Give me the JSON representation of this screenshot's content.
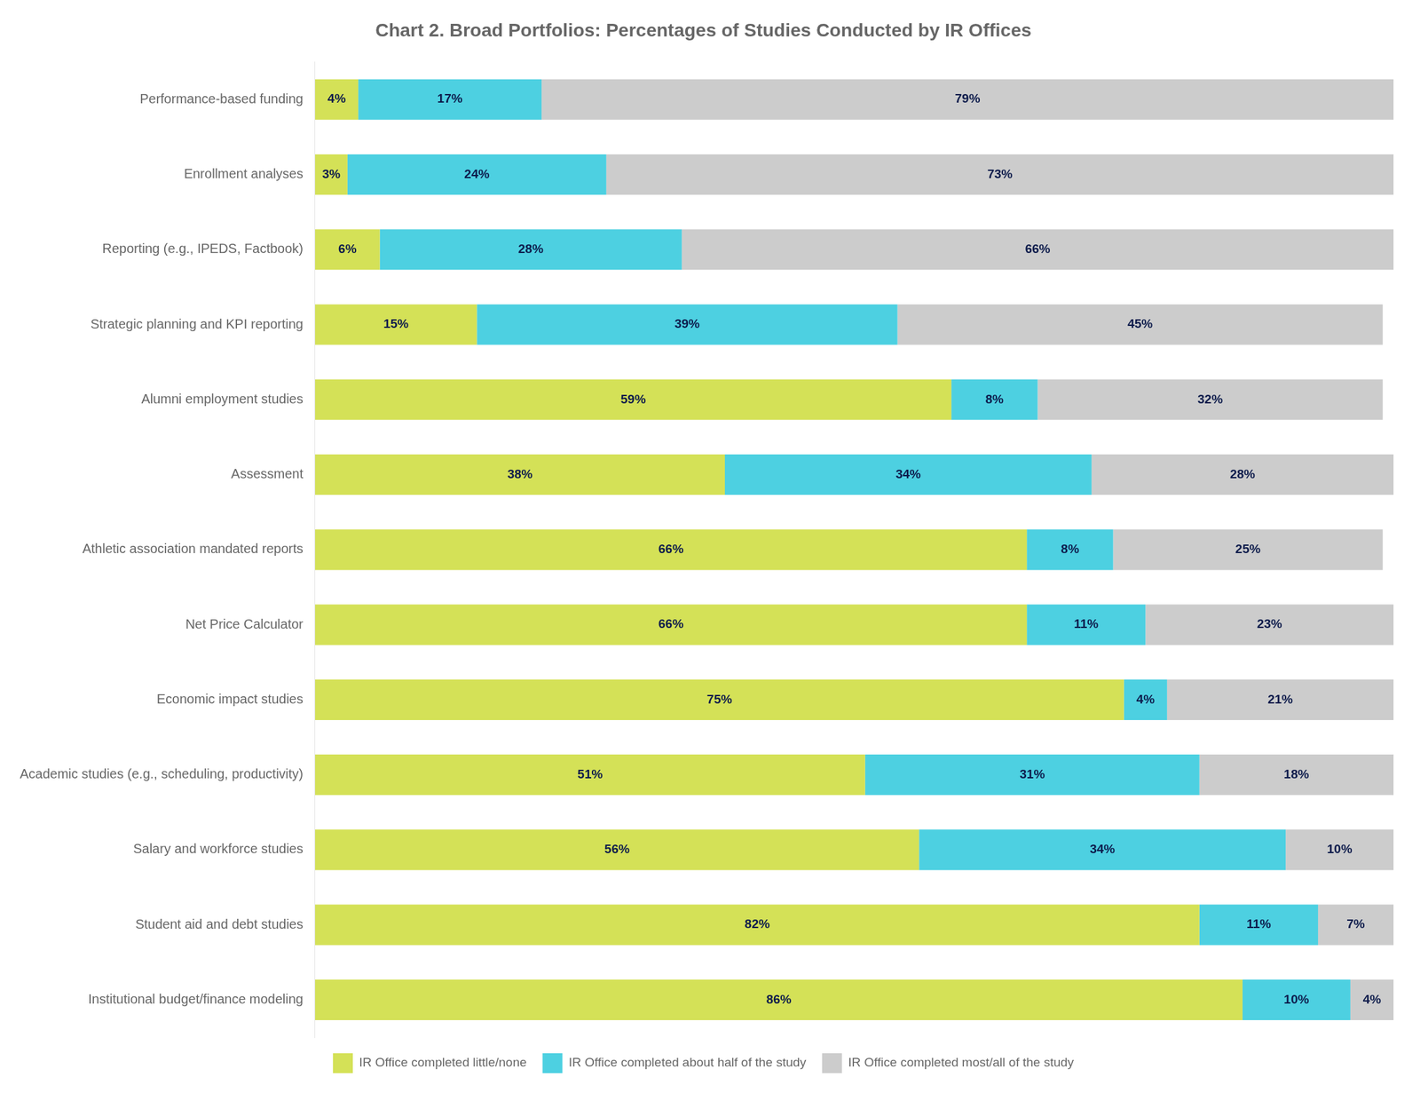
{
  "chart_data": {
    "type": "bar",
    "orientation": "horizontal",
    "stacked": true,
    "title": "Chart 2. Broad Portfolios: Percentages of Studies Conducted by IR Offices",
    "categories": [
      "Performance-based funding",
      "Enrollment analyses",
      "Reporting (e.g., IPEDS, Factbook)",
      "Strategic planning and KPI reporting",
      "Alumni employment studies",
      "Assessment",
      "Athletic association mandated reports",
      "Net Price Calculator",
      "Economic impact studies",
      "Academic studies (e.g., scheduling, productivity)",
      "Salary and workforce studies",
      "Student aid and debt studies",
      "Institutional budget/finance modeling"
    ],
    "series": [
      {
        "name": "IR Office completed little/none",
        "color": "#d4e157",
        "values": [
          4,
          3,
          6,
          15,
          59,
          38,
          66,
          66,
          75,
          51,
          56,
          82,
          86
        ],
        "value_labels": [
          "4%",
          "3%",
          "6%",
          "15%",
          "59%",
          "38%",
          "66%",
          "66%",
          "75%",
          "51%",
          "56%",
          "82%",
          "86%"
        ]
      },
      {
        "name": "IR Office completed about half of the study",
        "color": "#4dd0e1",
        "values": [
          17,
          24,
          28,
          39,
          8,
          34,
          8,
          11,
          4,
          31,
          34,
          11,
          10
        ],
        "value_labels": [
          "17%",
          "24%",
          "28%",
          "39%",
          "8%",
          "34%",
          "8%",
          "11%",
          "4%",
          "31%",
          "34%",
          "11%",
          "10%"
        ]
      },
      {
        "name": "IR Office completed most/all of the study",
        "color": "#cccccc",
        "values": [
          79,
          73,
          66,
          45,
          32,
          28,
          25,
          23,
          21,
          18,
          10,
          7,
          4
        ],
        "value_labels": [
          "79%",
          "73%",
          "66%",
          "45%",
          "32%",
          "28%",
          "25%",
          "23%",
          "21%",
          "18%",
          "10%",
          "7%",
          "4%"
        ]
      }
    ],
    "xlim": [
      0,
      100
    ],
    "grid": false,
    "legend": "bottom",
    "data_labels": true,
    "tick_labels": "y"
  }
}
